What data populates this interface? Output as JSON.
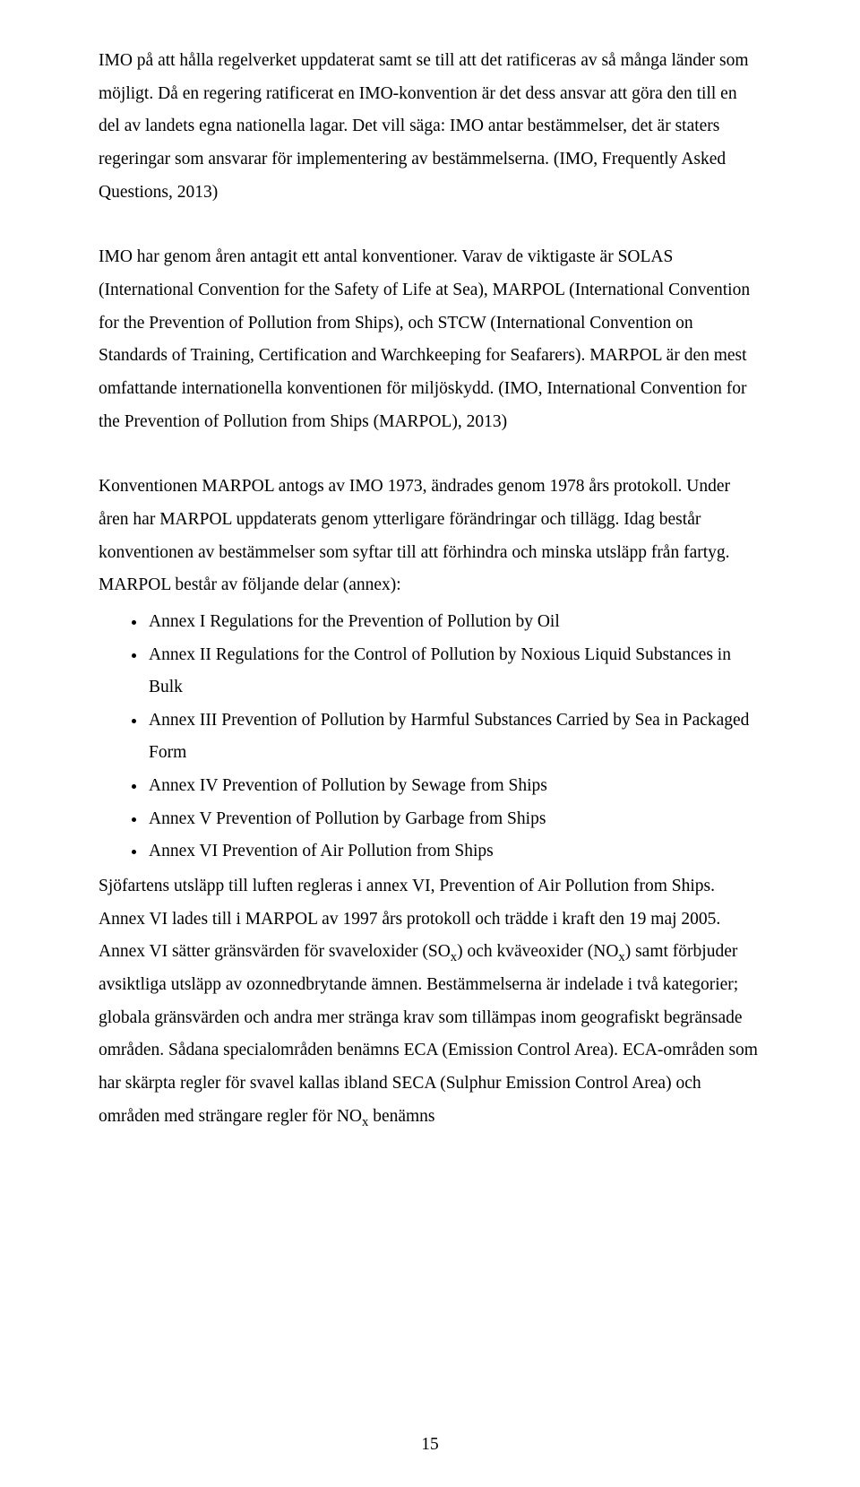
{
  "para1": "IMO på att hålla regelverket uppdaterat samt se till att det ratificeras av så många länder som möjligt. Då en regering ratificerat en IMO-konvention är det dess ansvar att göra den till en del av landets egna nationella lagar. Det vill säga: IMO antar bestämmelser, det är staters regeringar som ansvarar för implementering av bestämmelserna. (IMO, Frequently Asked Questions, 2013)",
  "para2": "IMO har genom åren antagit ett antal konventioner. Varav de viktigaste är SOLAS (International Convention for the Safety of Life at Sea), MARPOL (International Convention for the Prevention of Pollution from Ships), och STCW (International Convention on Standards of Training, Certification and Warchkeeping for Seafarers). MARPOL är den mest omfattande internationella konventionen för miljöskydd. (IMO, International Convention for the Prevention of Pollution from Ships (MARPOL), 2013)",
  "para3": "Konventionen MARPOL antogs av IMO 1973, ändrades genom 1978 års protokoll. Under åren har MARPOL uppdaterats genom ytterligare förändringar och tillägg. Idag består konventionen av bestämmelser som syftar till att förhindra och minska utsläpp från fartyg. MARPOL består av följande delar (annex):",
  "annex": [
    "Annex I  Regulations for the Prevention of Pollution by Oil",
    "Annex II  Regulations for the Control of  Pollution by Noxious Liquid Substances in Bulk",
    "Annex III Prevention of Pollution by Harmful Substances Carried by Sea in Packaged Form",
    "Annex IV Prevention of Pollution by Sewage from Ships",
    "Annex V Prevention of Pollution by Garbage from Ships",
    "Annex VI Prevention of  Air Pollution from Ships"
  ],
  "para4_a": "Sjöfartens utsläpp till luften regleras i annex VI, Prevention of Air Pollution from Ships. Annex VI lades till i MARPOL av 1997 års protokoll och trädde i kraft den 19 maj 2005. Annex VI sätter gränsvärden för svaveloxider (SO",
  "para4_b": ") och kväveoxider (NO",
  "para4_c": ") samt förbjuder avsiktliga utsläpp av ozonnedbrytande ämnen. Bestämmelserna är indelade i två kategorier; globala gränsvärden och andra mer stränga krav som tillämpas inom geografiskt begränsade områden. Sådana specialområden benämns ECA (Emission Control Area). ECA-områden som har skärpta regler för svavel kallas ibland SECA (Sulphur Emission Control Area) och områden med strängare regler för NO",
  "para4_d": " benämns",
  "sub_x": "x",
  "pagenum": "15"
}
